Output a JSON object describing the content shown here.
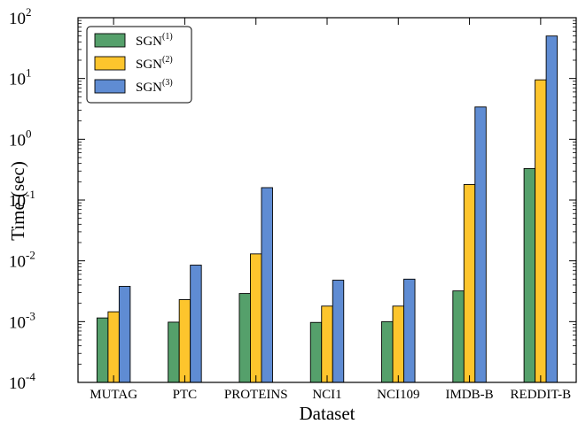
{
  "chart_data": {
    "type": "bar",
    "xlabel": "Dataset",
    "ylabel": "Time  (sec)",
    "yscale": "log",
    "ylim": [
      0.0001,
      100
    ],
    "grid": false,
    "legend_position": "top-left",
    "categories": [
      "MUTAG",
      "PTC",
      "PROTEINS",
      "NCI1",
      "NCI109",
      "IMDB-B",
      "REDDIT-B"
    ],
    "series": [
      {
        "name": "SGN",
        "sup": "(1)",
        "color": "#55a06b",
        "values": [
          0.00115,
          0.00098,
          0.0029,
          0.00097,
          0.001,
          0.0032,
          0.33
        ]
      },
      {
        "name": "SGN",
        "sup": "(2)",
        "color": "#fdc52d",
        "values": [
          0.00145,
          0.0023,
          0.013,
          0.0018,
          0.0018,
          0.18,
          9.5
        ]
      },
      {
        "name": "SGN",
        "sup": "(3)",
        "color": "#5f8cd3",
        "values": [
          0.0038,
          0.0085,
          0.16,
          0.0048,
          0.005,
          3.4,
          50
        ]
      }
    ],
    "yticks": [
      {
        "base": "10",
        "exp": "-4"
      },
      {
        "base": "10",
        "exp": "-3"
      },
      {
        "base": "10",
        "exp": "-2"
      },
      {
        "base": "10",
        "exp": "-1"
      },
      {
        "base": "10",
        "exp": "0"
      },
      {
        "base": "10",
        "exp": "1"
      },
      {
        "base": "10",
        "exp": "2"
      }
    ]
  }
}
